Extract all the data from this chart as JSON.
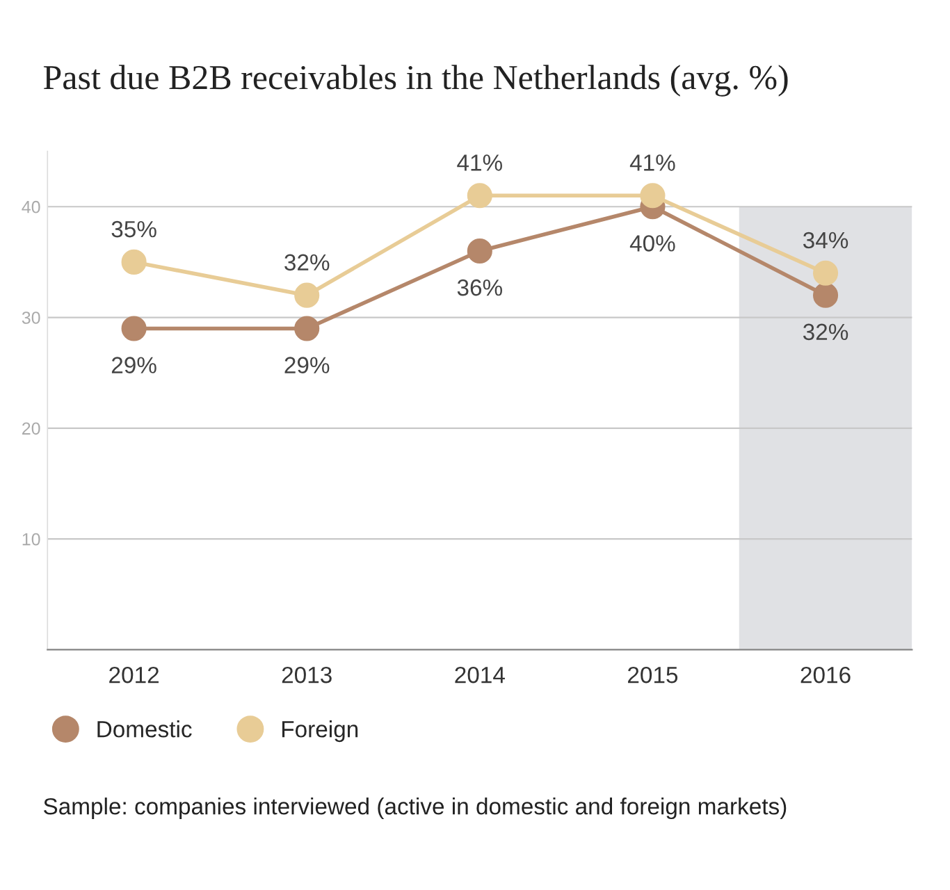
{
  "chart_data": {
    "type": "line",
    "title": "Past due B2B receivables in the Netherlands (avg. %)",
    "x": [
      2012,
      2013,
      2014,
      2015,
      2016
    ],
    "xlim": [
      2011.5,
      2016.5
    ],
    "xticks": [
      2012,
      2013,
      2014,
      2015,
      2016
    ],
    "ylim": [
      0,
      45
    ],
    "yticks": [
      {
        "value": 0,
        "label": null
      },
      10,
      20,
      30,
      40
    ],
    "series": [
      {
        "name": "Domestic",
        "color": "#b5876a",
        "values": [
          29,
          29,
          36,
          40,
          32
        ],
        "value_labels": [
          "29%",
          "29%",
          "36%",
          "40%",
          "32%"
        ]
      },
      {
        "name": "Foreign",
        "color": "#e8cc96",
        "values": [
          35,
          32,
          41,
          41,
          34
        ],
        "value_labels": [
          "35%",
          "32%",
          "41%",
          "41%",
          "34%"
        ]
      }
    ],
    "bands": [
      {
        "axis": "x",
        "from": 2015.5,
        "to": 2016.5,
        "color": "#e0e1e4"
      }
    ],
    "marker": "circle",
    "line_style": "solid",
    "grid": "y",
    "legend": "bottom left",
    "annotations": [
      "Sample: companies interviewed (active in domestic and foreign markets)"
    ]
  }
}
